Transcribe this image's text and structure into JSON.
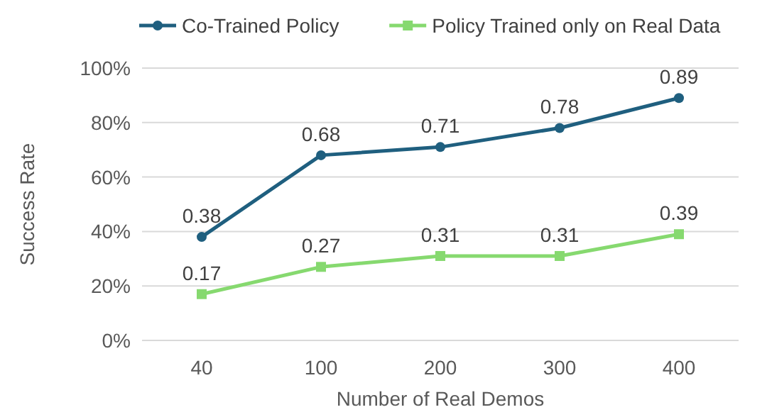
{
  "chart_data": {
    "type": "line",
    "xlabel": "Number of Real Demos",
    "ylabel": "Success Rate",
    "categories": [
      "40",
      "100",
      "200",
      "300",
      "400"
    ],
    "series": [
      {
        "name": "Co-Trained Policy",
        "color": "#1f5f7f",
        "marker": "circle",
        "values": [
          0.38,
          0.68,
          0.71,
          0.78,
          0.89
        ]
      },
      {
        "name": "Policy Trained only on Real Data",
        "color": "#86d96f",
        "marker": "square",
        "values": [
          0.17,
          0.27,
          0.31,
          0.31,
          0.39
        ]
      }
    ],
    "ylim": [
      0,
      1
    ],
    "yticks": [
      {
        "value": 0,
        "label": "0%"
      },
      {
        "value": 0.2,
        "label": "20%"
      },
      {
        "value": 0.4,
        "label": "40%"
      },
      {
        "value": 0.6,
        "label": "60%"
      },
      {
        "value": 0.8,
        "label": "80%"
      },
      {
        "value": 1,
        "label": "100%"
      }
    ],
    "grid": "y",
    "legend": "top",
    "data_labels": true
  }
}
